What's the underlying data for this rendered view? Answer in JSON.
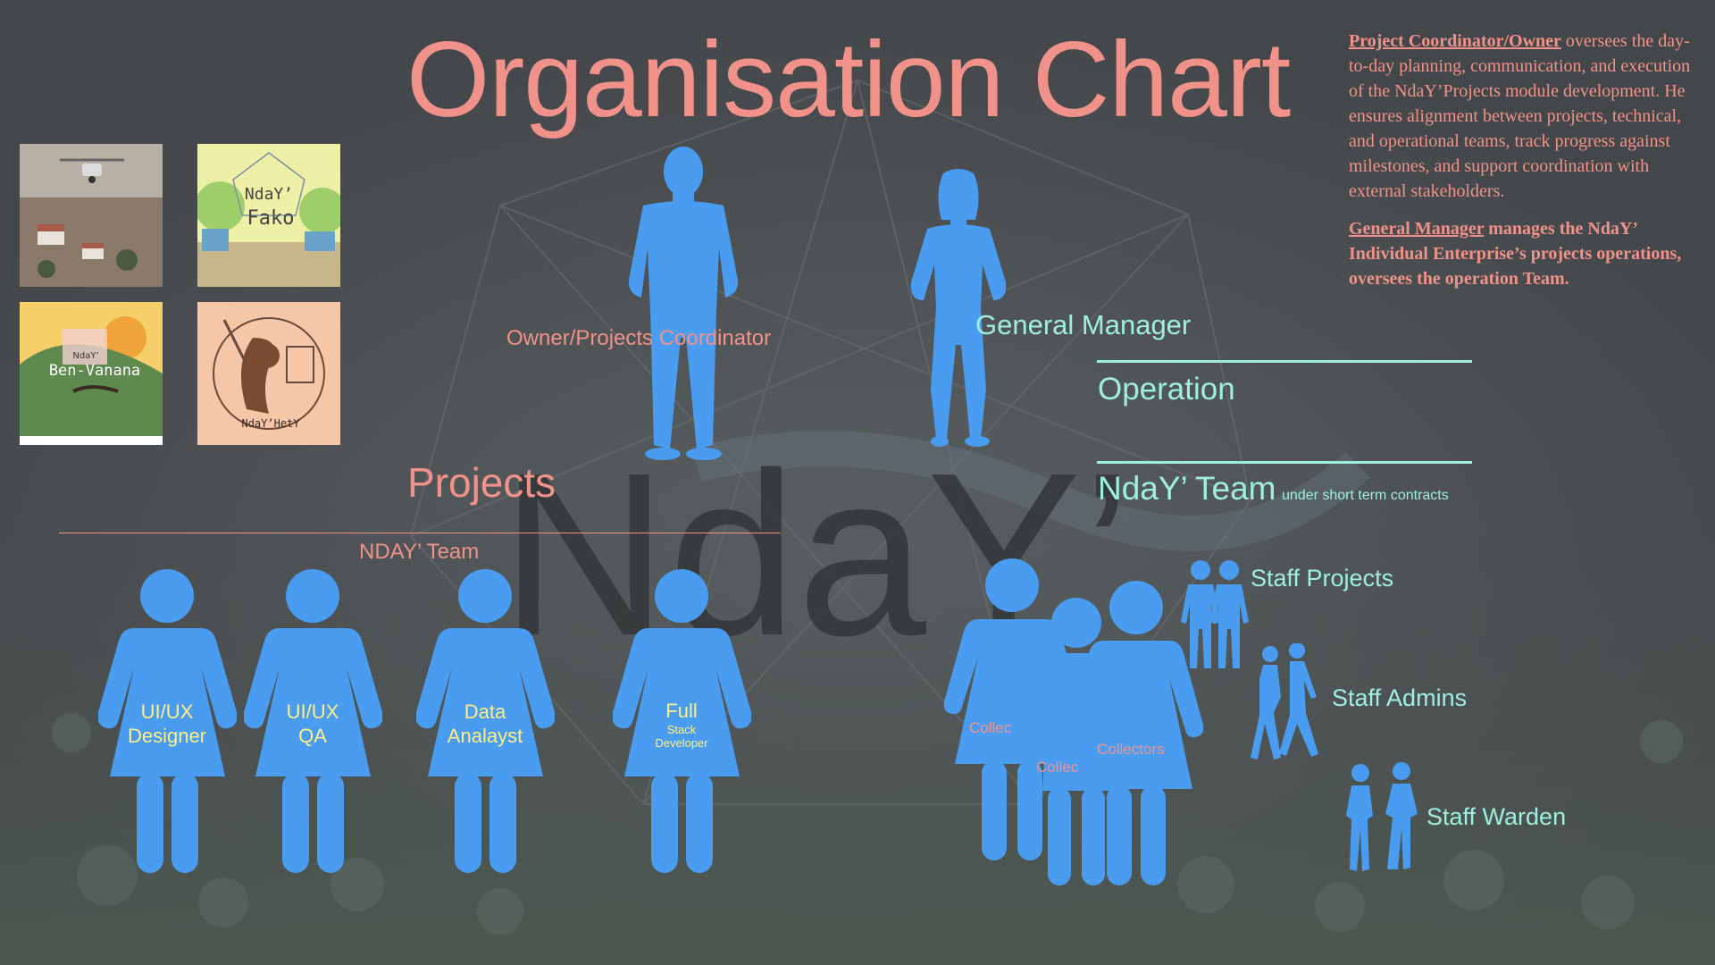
{
  "title": "Organisation Chart",
  "description": {
    "coordinator_role": "Project Coordinator/Owner",
    "coordinator_text": " oversees the day-to-day planning, communication, and execution of the NdaY’Projects module development. He ensures alignment between projects, technical, and operational teams, track progress against milestones, and support coordination with external stakeholders.",
    "manager_role": "General Manager",
    "manager_text": " manages the NdaY’ Individual Enterprise’s projects operations, oversees the operation Team."
  },
  "thumbnails": {
    "fako_line1": "NdaY’",
    "fako_line2": "Fako",
    "bengana_small": "NdaY’",
    "bengana_name": "Ben-Vanana",
    "hety_name": "NdaY’HetY"
  },
  "people": {
    "owner_label": "Owner/Projects Coordinator",
    "gm_label": "General Manager"
  },
  "sections": {
    "projects": "Projects",
    "nday_team_left": "NDAY’ Team",
    "operation": "Operation",
    "nday_team_right": "NdaY’ Team",
    "short_term": "under short term contracts"
  },
  "project_team": [
    {
      "line1": "UI/UX",
      "line2": "Designer"
    },
    {
      "line1": "UI/UX",
      "line2": "QA"
    },
    {
      "line1": "Data",
      "line2": "Analayst"
    },
    {
      "line1": "Full",
      "line2": "Stack",
      "line3": "Developer"
    }
  ],
  "collectors": {
    "left": "Collec",
    "middle": "Collec",
    "right": "Collectors"
  },
  "staff": {
    "projects": "Staff Projects",
    "admins": "Staff Admins",
    "warden": "Staff Warden"
  },
  "colors": {
    "background": "#4a4d4f",
    "accent_pink": "#f1928a",
    "accent_mint": "#9ef0dd",
    "figure_blue": "#4a9cf0",
    "label_yellow": "#ffef86"
  }
}
